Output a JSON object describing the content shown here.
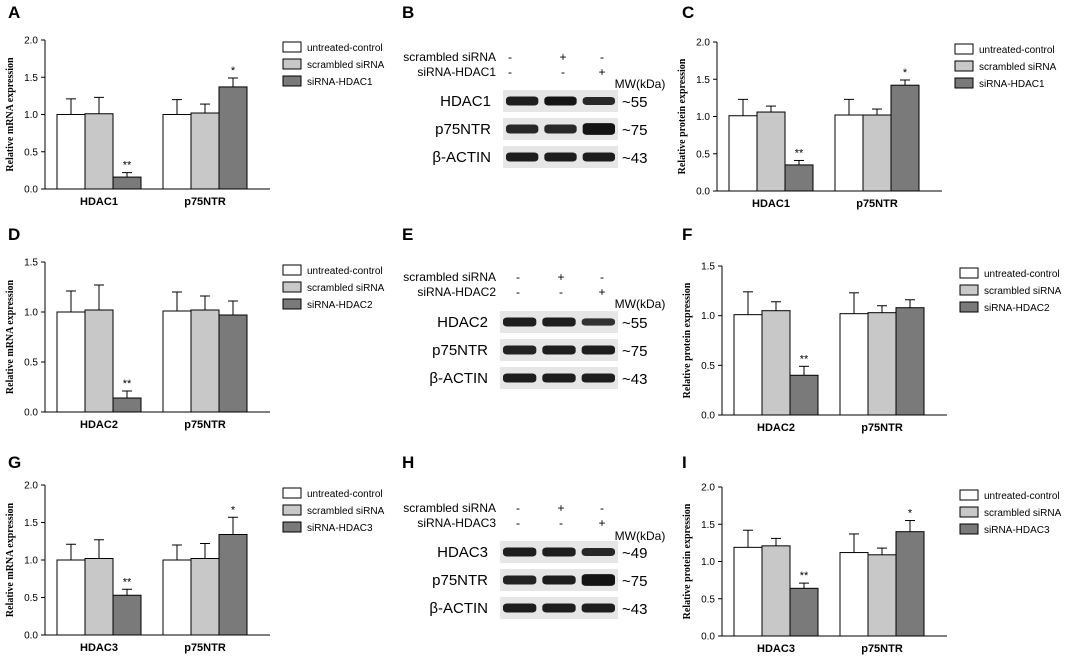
{
  "legend_colors": {
    "untreated-control": "#ffffff",
    "scrambled siRNA": "#c8c8c8",
    "siRNA": "#7a7a7a"
  },
  "chart_data": [
    {
      "panel": "A",
      "type": "bar",
      "ylabel": "Relative mRNA expression",
      "ylim": [
        0,
        2.0
      ],
      "yticks": [
        "0.0",
        "0.5",
        "1.0",
        "1.5",
        "2.0"
      ],
      "categories": [
        "HDAC1",
        "p75NTR"
      ],
      "series": [
        {
          "name": "untreated-control",
          "values": [
            1.0,
            1.0
          ],
          "errors": [
            0.21,
            0.2
          ],
          "sig": [
            "",
            ""
          ]
        },
        {
          "name": "scrambled siRNA",
          "values": [
            1.01,
            1.02
          ],
          "errors": [
            0.22,
            0.12
          ],
          "sig": [
            "",
            ""
          ]
        },
        {
          "name": "siRNA-HDAC1",
          "values": [
            0.16,
            1.37
          ],
          "errors": [
            0.06,
            0.12
          ],
          "sig": [
            "**",
            "*"
          ]
        }
      ],
      "legend_position": "right"
    },
    {
      "panel": "C",
      "type": "bar",
      "ylabel": "Relative protein expression",
      "ylim": [
        0,
        2.0
      ],
      "yticks": [
        "0.0",
        "0.5",
        "1.0",
        "1.5",
        "2.0"
      ],
      "categories": [
        "HDAC1",
        "p75NTR"
      ],
      "series": [
        {
          "name": "untreated-control",
          "values": [
            1.01,
            1.02
          ],
          "errors": [
            0.22,
            0.21
          ],
          "sig": [
            "",
            ""
          ]
        },
        {
          "name": "scrambled siRNA",
          "values": [
            1.06,
            1.02
          ],
          "errors": [
            0.08,
            0.08
          ],
          "sig": [
            "",
            ""
          ]
        },
        {
          "name": "siRNA-HDAC1",
          "values": [
            0.35,
            1.42
          ],
          "errors": [
            0.06,
            0.07
          ],
          "sig": [
            "**",
            "*"
          ]
        }
      ],
      "legend_position": "right"
    },
    {
      "panel": "D",
      "type": "bar",
      "ylabel": "Relative mRNA expression",
      "ylim": [
        0,
        1.5
      ],
      "yticks": [
        "0.0",
        "0.5",
        "1.0",
        "1.5"
      ],
      "categories": [
        "HDAC2",
        "p75NTR"
      ],
      "series": [
        {
          "name": "untreated-control",
          "values": [
            1.0,
            1.01
          ],
          "errors": [
            0.21,
            0.19
          ],
          "sig": [
            "",
            ""
          ]
        },
        {
          "name": "scrambled siRNA",
          "values": [
            1.02,
            1.02
          ],
          "errors": [
            0.25,
            0.14
          ],
          "sig": [
            "",
            ""
          ]
        },
        {
          "name": "siRNA-HDAC2",
          "values": [
            0.14,
            0.97
          ],
          "errors": [
            0.07,
            0.14
          ],
          "sig": [
            "**",
            ""
          ]
        }
      ],
      "legend_position": "right"
    },
    {
      "panel": "F",
      "type": "bar",
      "ylabel": "Relative protein expression",
      "ylim": [
        0,
        1.5
      ],
      "yticks": [
        "0.0",
        "0.5",
        "1.0",
        "1.5"
      ],
      "categories": [
        "HDAC2",
        "p75NTR"
      ],
      "series": [
        {
          "name": "untreated-control",
          "values": [
            1.01,
            1.02
          ],
          "errors": [
            0.23,
            0.21
          ],
          "sig": [
            "",
            ""
          ]
        },
        {
          "name": "scrambled siRNA",
          "values": [
            1.05,
            1.03
          ],
          "errors": [
            0.09,
            0.07
          ],
          "sig": [
            "",
            ""
          ]
        },
        {
          "name": "siRNA-HDAC2",
          "values": [
            0.4,
            1.08
          ],
          "errors": [
            0.09,
            0.08
          ],
          "sig": [
            "**",
            ""
          ]
        }
      ],
      "legend_position": "right"
    },
    {
      "panel": "G",
      "type": "bar",
      "ylabel": "Relative mRNA expression",
      "ylim": [
        0,
        2.0
      ],
      "yticks": [
        "0.0",
        "0.5",
        "1.0",
        "1.5",
        "2.0"
      ],
      "categories": [
        "HDAC3",
        "p75NTR"
      ],
      "series": [
        {
          "name": "untreated-control",
          "values": [
            1.0,
            1.0
          ],
          "errors": [
            0.21,
            0.2
          ],
          "sig": [
            "",
            ""
          ]
        },
        {
          "name": "scrambled siRNA",
          "values": [
            1.02,
            1.02
          ],
          "errors": [
            0.25,
            0.2
          ],
          "sig": [
            "",
            ""
          ]
        },
        {
          "name": "siRNA-HDAC3",
          "values": [
            0.53,
            1.34
          ],
          "errors": [
            0.08,
            0.23
          ],
          "sig": [
            "**",
            "*"
          ]
        }
      ],
      "legend_position": "right"
    },
    {
      "panel": "I",
      "type": "bar",
      "ylabel": "Relative protein expression",
      "ylim": [
        0,
        2.0
      ],
      "yticks": [
        "0.0",
        "0.5",
        "1.0",
        "1.5",
        "2.0"
      ],
      "categories": [
        "HDAC3",
        "p75NTR"
      ],
      "series": [
        {
          "name": "untreated-control",
          "values": [
            1.19,
            1.12
          ],
          "errors": [
            0.23,
            0.25
          ],
          "sig": [
            "",
            ""
          ]
        },
        {
          "name": "scrambled siRNA",
          "values": [
            1.21,
            1.09
          ],
          "errors": [
            0.1,
            0.09
          ],
          "sig": [
            "",
            ""
          ]
        },
        {
          "name": "siRNA-HDAC3",
          "values": [
            0.64,
            1.4
          ],
          "errors": [
            0.07,
            0.15
          ],
          "sig": [
            "**",
            "*"
          ]
        }
      ],
      "legend_position": "right"
    }
  ],
  "blots": [
    {
      "panel": "B",
      "header_rows": [
        {
          "label": "scrambled siRNA",
          "marks": [
            "-",
            "+",
            "-"
          ]
        },
        {
          "label": "siRNA-HDAC1",
          "marks": [
            "-",
            "-",
            "+"
          ]
        }
      ],
      "mw_header": "MW(kDa)",
      "rows": [
        {
          "label": "HDAC1",
          "mw": "~55"
        },
        {
          "label": "p75NTR",
          "mw": "~75"
        },
        {
          "label": "β-ACTIN",
          "mw": "~43"
        }
      ]
    },
    {
      "panel": "E",
      "header_rows": [
        {
          "label": "scrambled siRNA",
          "marks": [
            "-",
            "+",
            "-"
          ]
        },
        {
          "label": "siRNA-HDAC2",
          "marks": [
            "-",
            "-",
            "+"
          ]
        }
      ],
      "mw_header": "MW(kDa)",
      "rows": [
        {
          "label": "HDAC2",
          "mw": "~55"
        },
        {
          "label": "p75NTR",
          "mw": "~75"
        },
        {
          "label": "β-ACTIN",
          "mw": "~43"
        }
      ]
    },
    {
      "panel": "H",
      "header_rows": [
        {
          "label": "scrambled siRNA",
          "marks": [
            "-",
            "+",
            "-"
          ]
        },
        {
          "label": "siRNA-HDAC3",
          "marks": [
            "-",
            "-",
            "+"
          ]
        }
      ],
      "mw_header": "MW(kDa)",
      "rows": [
        {
          "label": "HDAC3",
          "mw": "~49"
        },
        {
          "label": "p75NTR",
          "mw": "~75"
        },
        {
          "label": "β-ACTIN",
          "mw": "~43"
        }
      ]
    }
  ]
}
